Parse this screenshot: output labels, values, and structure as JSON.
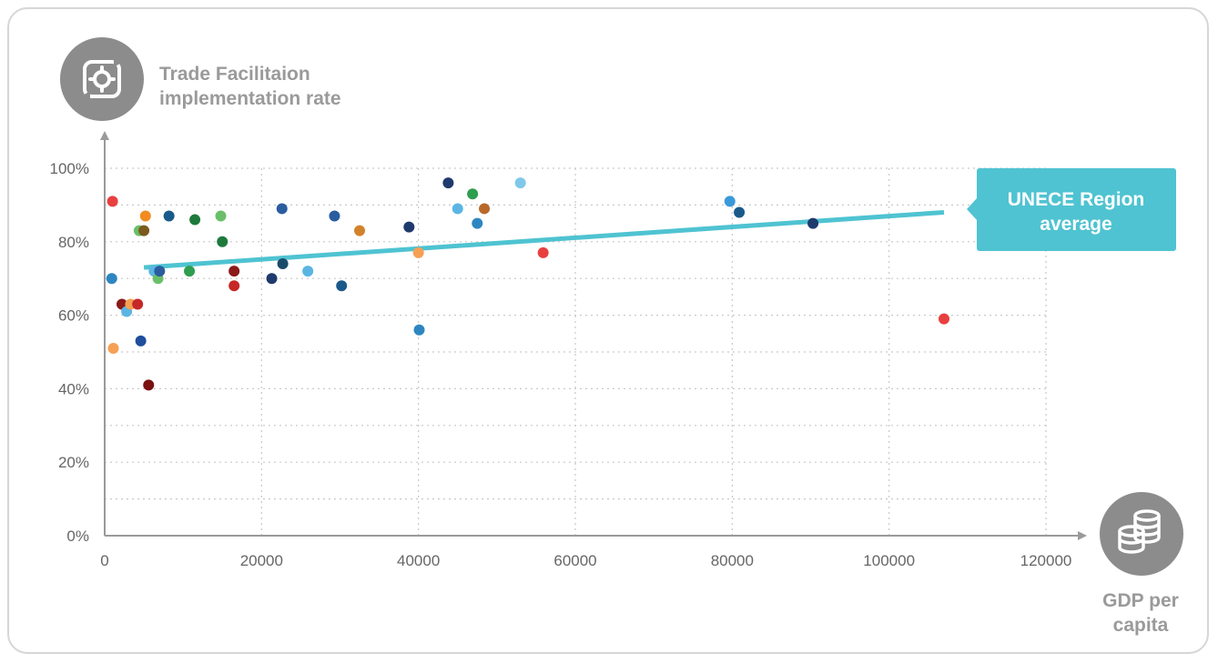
{
  "chart_data": {
    "type": "scatter",
    "ylabel_lines": [
      "Trade Facilitaion",
      "implementation rate"
    ],
    "xlabel_lines": [
      "GDP per",
      "capita"
    ],
    "xlim": [
      0,
      120000
    ],
    "ylim": [
      0,
      100
    ],
    "x_ticks": [
      "0",
      "20000",
      "40000",
      "60000",
      "80000",
      "100000",
      "120000"
    ],
    "y_ticks": [
      "0%",
      "20%",
      "40%",
      "60%",
      "80%",
      "100%"
    ],
    "grid": true,
    "trend_line": {
      "label_lines": [
        "UNECE Region",
        "average"
      ],
      "color": "#4fc3d1",
      "x": [
        5000,
        107000
      ],
      "y": [
        73,
        88
      ]
    },
    "points": [
      {
        "x": 900,
        "y": 70,
        "color": "#2e86c1"
      },
      {
        "x": 1000,
        "y": 91,
        "color": "#e8403f"
      },
      {
        "x": 1100,
        "y": 51,
        "color": "#f6a054"
      },
      {
        "x": 2200,
        "y": 63,
        "color": "#8b1a1a"
      },
      {
        "x": 2800,
        "y": 61,
        "color": "#5bb5e3"
      },
      {
        "x": 3300,
        "y": 63,
        "color": "#f6a054"
      },
      {
        "x": 4200,
        "y": 63,
        "color": "#c62828"
      },
      {
        "x": 4400,
        "y": 83,
        "color": "#6abf69"
      },
      {
        "x": 4600,
        "y": 53,
        "color": "#1f4e9c"
      },
      {
        "x": 5000,
        "y": 83,
        "color": "#7b5a1e"
      },
      {
        "x": 5200,
        "y": 87,
        "color": "#f28b20"
      },
      {
        "x": 5600,
        "y": 41,
        "color": "#7a1010"
      },
      {
        "x": 6300,
        "y": 72,
        "color": "#5bb5e3"
      },
      {
        "x": 6800,
        "y": 70,
        "color": "#6abf69"
      },
      {
        "x": 7000,
        "y": 72,
        "color": "#2a5d9f"
      },
      {
        "x": 8200,
        "y": 87,
        "color": "#1a5a8a"
      },
      {
        "x": 10800,
        "y": 72,
        "color": "#2e9e4f"
      },
      {
        "x": 11500,
        "y": 86,
        "color": "#1e7a3c"
      },
      {
        "x": 14800,
        "y": 87,
        "color": "#6abf69"
      },
      {
        "x": 15000,
        "y": 80,
        "color": "#1e7a3c"
      },
      {
        "x": 16500,
        "y": 72,
        "color": "#8b1a1a"
      },
      {
        "x": 16500,
        "y": 68,
        "color": "#c62828"
      },
      {
        "x": 21300,
        "y": 70,
        "color": "#1f3a6d"
      },
      {
        "x": 22600,
        "y": 89,
        "color": "#2a5d9f"
      },
      {
        "x": 22700,
        "y": 74,
        "color": "#1a4a6a"
      },
      {
        "x": 25900,
        "y": 72,
        "color": "#5bb5e3"
      },
      {
        "x": 29300,
        "y": 87,
        "color": "#2a5d9f"
      },
      {
        "x": 30200,
        "y": 68,
        "color": "#1a5a8a"
      },
      {
        "x": 32500,
        "y": 83,
        "color": "#d2822b"
      },
      {
        "x": 38800,
        "y": 84,
        "color": "#1f3a6d"
      },
      {
        "x": 40000,
        "y": 77,
        "color": "#f6a054"
      },
      {
        "x": 40100,
        "y": 56,
        "color": "#2e86c1"
      },
      {
        "x": 43800,
        "y": 96,
        "color": "#1f3a6d"
      },
      {
        "x": 45000,
        "y": 89,
        "color": "#5bb5e3"
      },
      {
        "x": 46900,
        "y": 93,
        "color": "#2e9e4f"
      },
      {
        "x": 47500,
        "y": 85,
        "color": "#2e86c1"
      },
      {
        "x": 48400,
        "y": 89,
        "color": "#b8692a"
      },
      {
        "x": 53000,
        "y": 96,
        "color": "#7fc8ea"
      },
      {
        "x": 55900,
        "y": 77,
        "color": "#e8403f"
      },
      {
        "x": 79700,
        "y": 91,
        "color": "#3a9ad9"
      },
      {
        "x": 80900,
        "y": 88,
        "color": "#1a5a8a"
      },
      {
        "x": 90300,
        "y": 85,
        "color": "#1f3a6d"
      },
      {
        "x": 107000,
        "y": 59,
        "color": "#e8403f"
      }
    ]
  }
}
